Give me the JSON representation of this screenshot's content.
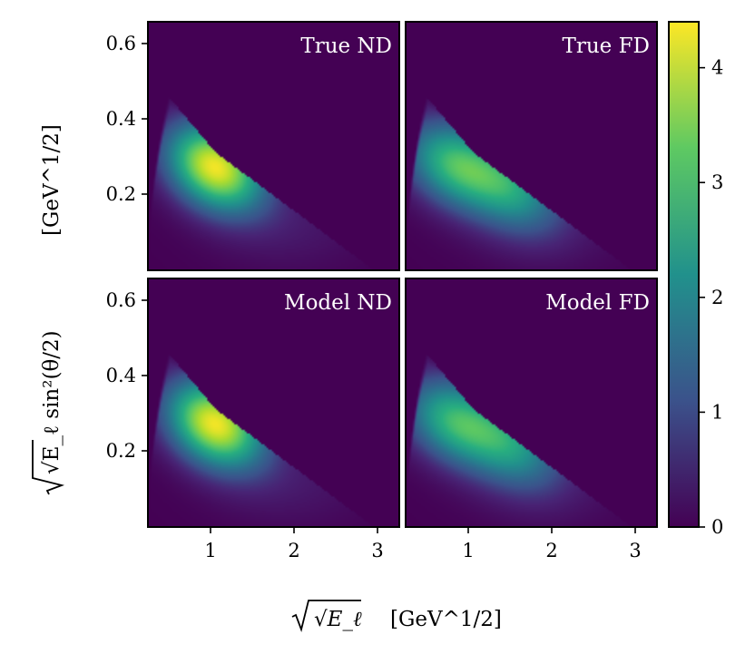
{
  "chart_data": [
    {
      "type": "heatmap",
      "title": "True ND",
      "x_range": [
        0.25,
        3.25
      ],
      "y_range": [
        0.0,
        0.65
      ],
      "x_ticks": [
        "1",
        "2",
        "3"
      ],
      "y_ticks": [
        "0.2",
        "0.4",
        "0.6"
      ],
      "peaks": [
        {
          "x": 1.05,
          "y": 0.27,
          "value": 4.3
        }
      ]
    },
    {
      "type": "heatmap",
      "title": "True FD",
      "x_range": [
        0.25,
        3.25
      ],
      "y_range": [
        0.0,
        0.65
      ],
      "x_ticks": [
        "1",
        "2",
        "3"
      ],
      "y_ticks": [
        "0.2",
        "0.4",
        "0.6"
      ],
      "peaks": [
        {
          "x": 0.8,
          "y": 0.28,
          "value": 2.7
        },
        {
          "x": 1.5,
          "y": 0.22,
          "value": 2.2
        }
      ]
    },
    {
      "type": "heatmap",
      "title": "Model ND",
      "x_range": [
        0.25,
        3.25
      ],
      "y_range": [
        0.0,
        0.65
      ],
      "x_ticks": [
        "1",
        "2",
        "3"
      ],
      "y_ticks": [
        "0.2",
        "0.4",
        "0.6"
      ],
      "peaks": [
        {
          "x": 1.05,
          "y": 0.27,
          "value": 4.3
        }
      ]
    },
    {
      "type": "heatmap",
      "title": "Model FD",
      "x_range": [
        0.25,
        3.25
      ],
      "y_range": [
        0.0,
        0.65
      ],
      "x_ticks": [
        "1",
        "2",
        "3"
      ],
      "y_ticks": [
        "0.2",
        "0.4",
        "0.6"
      ],
      "peaks": [
        {
          "x": 0.8,
          "y": 0.28,
          "value": 2.6
        },
        {
          "x": 1.5,
          "y": 0.22,
          "value": 2.1
        }
      ]
    }
  ],
  "colorbar": {
    "colormap": "viridis",
    "range": [
      0,
      4.4
    ],
    "ticks": [
      "0",
      "1",
      "2",
      "3",
      "4"
    ],
    "colors": [
      "#440154",
      "#3b528b",
      "#21918c",
      "#5ec962",
      "#fde725"
    ]
  },
  "axes": {
    "xlabel_main": "√E_ℓ",
    "xlabel_unit": "[GeV^1/2]",
    "ylabel_main": "√E_ℓ sin²(θ/2)",
    "ylabel_unit": "[GeV^1/2]"
  }
}
